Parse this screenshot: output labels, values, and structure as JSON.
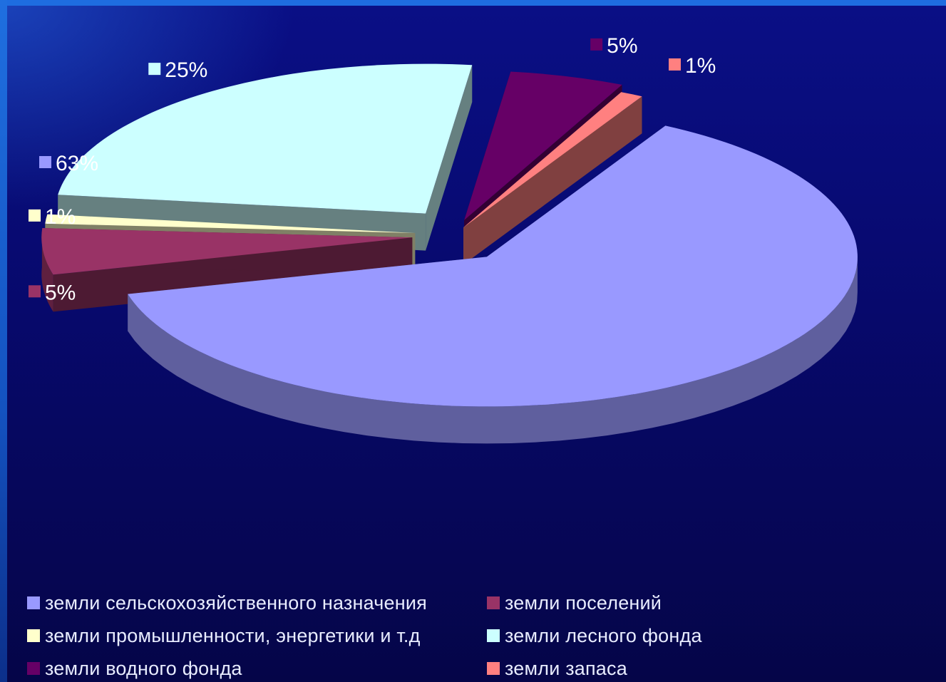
{
  "chart_data": {
    "type": "pie",
    "title": "",
    "exploded": true,
    "three_d": true,
    "slices": [
      {
        "name": "земли сельскохозяйственного назначения",
        "value": 63,
        "label": "63%",
        "color": "#9999ff"
      },
      {
        "name": "земли поселений",
        "value": 5,
        "label": "5%",
        "color": "#993366"
      },
      {
        "name": "земли промышленности, энергетики и т.д",
        "value": 1,
        "label": "1%",
        "color": "#ffffcc"
      },
      {
        "name": "земли лесного фонда",
        "value": 25,
        "label": "25%",
        "color": "#ccffff"
      },
      {
        "name": "земли водного фонда",
        "value": 5,
        "label": "5%",
        "color": "#660066"
      },
      {
        "name": "земли запаса",
        "value": 1,
        "label": "1%",
        "color": "#ff8080"
      }
    ],
    "legend_position": "bottom"
  }
}
